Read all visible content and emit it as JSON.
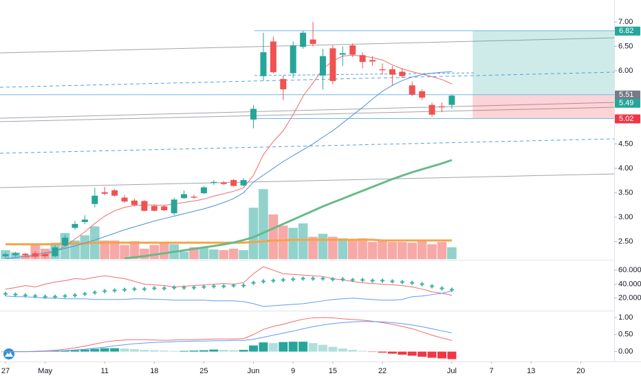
{
  "chart_data": [
    {
      "type": "candlestick",
      "x": [
        0,
        1,
        2,
        3,
        4,
        5,
        6,
        7,
        8,
        9,
        10,
        11,
        12,
        13,
        14,
        15,
        16,
        17,
        18,
        19,
        20,
        21,
        22,
        23,
        24,
        25,
        26,
        27,
        28,
        29,
        30,
        31,
        32,
        33,
        34,
        35,
        36,
        37,
        38,
        39,
        40,
        41,
        42,
        43,
        44,
        45
      ],
      "open": [
        2.2,
        2.22,
        2.25,
        2.26,
        2.24,
        2.2,
        2.42,
        2.78,
        2.9,
        3.27,
        3.51,
        3.55,
        3.4,
        3.34,
        3.33,
        3.23,
        3.22,
        3.08,
        3.39,
        3.42,
        3.49,
        3.7,
        3.71,
        3.76,
        3.65,
        5.0,
        5.89,
        6.6,
        5.83,
        5.95,
        6.49,
        6.64,
        5.9,
        6.46,
        6.33,
        6.52,
        6.32,
        6.22,
        6.03,
        6.03,
        5.98,
        5.7,
        5.58,
        5.3,
        5.27,
        5.3
      ],
      "high": [
        2.28,
        2.29,
        2.27,
        2.3,
        2.27,
        2.42,
        2.64,
        2.92,
        3.04,
        3.6,
        3.62,
        3.58,
        3.45,
        3.38,
        3.35,
        3.26,
        3.25,
        3.4,
        3.55,
        3.46,
        3.64,
        3.76,
        3.74,
        3.78,
        3.8,
        5.3,
        6.78,
        6.7,
        5.9,
        6.6,
        6.82,
        7.0,
        6.45,
        6.52,
        6.5,
        6.56,
        6.38,
        6.3,
        6.15,
        6.1,
        6.05,
        5.78,
        5.62,
        5.35,
        5.35,
        5.51
      ],
      "low": [
        2.17,
        2.19,
        2.18,
        2.15,
        2.16,
        2.18,
        2.4,
        2.74,
        2.86,
        3.2,
        3.45,
        3.42,
        3.29,
        3.22,
        3.12,
        3.12,
        3.12,
        3.04,
        3.37,
        3.38,
        3.47,
        3.66,
        3.66,
        3.62,
        3.63,
        4.82,
        5.8,
        5.95,
        5.4,
        5.85,
        6.45,
        6.5,
        5.62,
        5.72,
        6.1,
        6.28,
        6.05,
        6.1,
        5.92,
        5.7,
        5.85,
        5.48,
        5.4,
        5.05,
        5.15,
        5.22
      ],
      "close": [
        2.24,
        2.26,
        2.22,
        2.19,
        2.2,
        2.38,
        2.58,
        2.86,
        2.95,
        3.44,
        3.48,
        3.44,
        3.32,
        3.25,
        3.13,
        3.13,
        3.14,
        3.36,
        3.47,
        3.4,
        3.61,
        3.72,
        3.68,
        3.64,
        3.76,
        5.22,
        6.38,
        5.97,
        5.62,
        6.52,
        6.78,
        6.55,
        6.3,
        5.79,
        6.36,
        6.33,
        6.18,
        6.19,
        6.01,
        5.92,
        5.89,
        5.51,
        5.45,
        5.1,
        5.25,
        5.49
      ],
      "volume": [
        12,
        9,
        5,
        19,
        14,
        22,
        35,
        25,
        32,
        44,
        25,
        25,
        19,
        24,
        14,
        19,
        22,
        20,
        10,
        16,
        16,
        13,
        12,
        14,
        12,
        69,
        94,
        60,
        45,
        42,
        48,
        30,
        34,
        30,
        28,
        25,
        28,
        23,
        26,
        23,
        23,
        22,
        25,
        20,
        23,
        16
      ],
      "volume_ma": {
        "color": "#f7a244",
        "width": 3,
        "values": [
          20,
          20,
          20,
          20,
          20,
          20,
          21,
          21,
          21,
          22,
          22,
          22,
          22,
          22,
          22,
          22,
          22,
          22,
          22,
          22,
          22,
          22,
          22,
          22,
          22,
          23,
          24,
          25,
          25,
          26,
          26,
          26,
          26,
          26,
          26,
          26,
          26,
          26,
          25,
          25,
          25,
          25,
          25,
          25,
          25,
          25
        ]
      },
      "up_color": "#26a69a",
      "down_color": "#ef5350",
      "volume_up_color": "rgba(38,166,154,0.5)",
      "volume_down_color": "rgba(239,83,80,0.5)",
      "series": [
        {
          "color": "#f06a6a",
          "width": 1,
          "values": [
            null,
            null,
            2.18,
            2.2,
            2.23,
            2.3,
            2.4,
            2.55,
            2.7,
            2.87,
            3.02,
            3.13,
            3.2,
            3.24,
            3.25,
            3.25,
            3.24,
            3.27,
            3.3,
            3.33,
            3.37,
            3.43,
            3.48,
            3.53,
            3.6,
            3.86,
            4.28,
            4.55,
            4.77,
            5.1,
            5.48,
            5.75,
            6.04,
            6.2,
            6.3,
            6.32,
            6.3,
            6.27,
            6.22,
            6.12,
            6.04,
            5.98,
            5.93,
            5.88,
            5.82,
            5.73
          ]
        },
        {
          "color": "#4a8fdc",
          "width": 1,
          "values": [
            2.15,
            2.17,
            2.2,
            2.23,
            2.27,
            2.31,
            2.36,
            2.41,
            2.47,
            2.53,
            2.6,
            2.67,
            2.74,
            2.8,
            2.86,
            2.92,
            2.97,
            3.02,
            3.07,
            3.12,
            3.17,
            3.23,
            3.3,
            3.38,
            3.5,
            3.72,
            3.86,
            4.0,
            4.14,
            4.26,
            4.38,
            4.5,
            4.64,
            4.77,
            4.93,
            5.09,
            5.25,
            5.42,
            5.58,
            5.7,
            5.8,
            5.87,
            5.92,
            5.95,
            5.97,
            5.98
          ]
        },
        {
          "color": "#66bb8a",
          "width": 3,
          "values": [
            null,
            null,
            null,
            null,
            null,
            null,
            null,
            null,
            null,
            null,
            null,
            null,
            2.15,
            2.18,
            2.2,
            2.23,
            2.26,
            2.29,
            2.32,
            2.35,
            2.38,
            2.41,
            2.44,
            2.48,
            2.53,
            2.59,
            2.68,
            2.77,
            2.86,
            2.95,
            3.04,
            3.13,
            3.22,
            3.3,
            3.38,
            3.46,
            3.54,
            3.62,
            3.7,
            3.78,
            3.85,
            3.92,
            3.98,
            4.04,
            4.1,
            4.17
          ]
        }
      ],
      "ylim": [
        2.14,
        7.45
      ],
      "yticks": [
        {
          "value": 7,
          "label": "7.00"
        },
        {
          "value": 6.5,
          "label": "6.50"
        },
        {
          "value": 6,
          "label": "6.00"
        },
        {
          "value": 4.5,
          "label": "4.50"
        },
        {
          "value": 4,
          "label": "4.00"
        },
        {
          "value": 3.5,
          "label": "3.50"
        },
        {
          "value": 3,
          "label": "3.00"
        },
        {
          "value": 2.5,
          "label": "2.50"
        }
      ],
      "xlim": [
        -0.555,
        61.37
      ],
      "xticks": [
        {
          "value": 0,
          "label": "27"
        },
        {
          "value": 4,
          "label": "May"
        },
        {
          "value": 10,
          "label": "11"
        },
        {
          "value": 15,
          "label": "18"
        },
        {
          "value": 20,
          "label": "25"
        },
        {
          "value": 25,
          "label": "Jun"
        },
        {
          "value": 29,
          "label": "9"
        },
        {
          "value": 33,
          "label": "15"
        },
        {
          "value": 38,
          "label": "22"
        },
        {
          "value": 45,
          "label": "Jul"
        },
        {
          "value": 49,
          "label": "7"
        },
        {
          "value": 53,
          "label": "13"
        },
        {
          "value": 58,
          "label": "20"
        }
      ],
      "price_labels": [
        {
          "value": 6.82,
          "label": "6.82",
          "color": "#26a69a"
        },
        {
          "value": 5.51,
          "label": "5.51",
          "color": "#787b86"
        },
        {
          "value": 5.49,
          "label": "5.49",
          "color": "#26a69a"
        },
        {
          "value": 5.02,
          "label": "5.02",
          "color": "#f23645"
        }
      ],
      "position_colors": [
        "rgba(38,166,154,0.22)",
        "rgba(242,54,69,0.22)"
      ]
    },
    {
      "type": "line",
      "series": [
        {
          "color": "#f06a6a",
          "style": "line",
          "values": [
            33,
            35,
            38,
            36,
            40,
            43,
            45,
            48,
            47,
            50,
            52,
            50,
            48,
            44,
            40,
            39,
            38,
            36,
            37,
            38,
            39,
            40,
            41,
            40,
            42,
            55,
            65,
            60,
            55,
            54,
            53,
            52,
            51,
            48,
            46,
            44,
            42,
            41,
            40,
            39,
            38,
            36,
            33,
            29,
            27,
            24
          ]
        },
        {
          "color": "#5b9cf6",
          "style": "line",
          "values": [
            23,
            22,
            22,
            21,
            20,
            20,
            19,
            19,
            19,
            18,
            18,
            18,
            18,
            19,
            19,
            18,
            18,
            17,
            17,
            17,
            17,
            16,
            16,
            16,
            15,
            12,
            8,
            9,
            10,
            11,
            12,
            14,
            16,
            18,
            19,
            20,
            19,
            18,
            17,
            17,
            18,
            22,
            23,
            25,
            27,
            30
          ]
        },
        {
          "color": "#3bb3a8",
          "style": "cross",
          "values": [
            26,
            25,
            24,
            23,
            22,
            22,
            23,
            24,
            26,
            28,
            30,
            31,
            32,
            33,
            33,
            34,
            34,
            35,
            35,
            35,
            36,
            37,
            37,
            38,
            38,
            42,
            44,
            45,
            46,
            47,
            48,
            48,
            48,
            47,
            47,
            46,
            46,
            45,
            45,
            44,
            43,
            42,
            40,
            37,
            34,
            32
          ]
        }
      ],
      "ylim": [
        3,
        73
      ],
      "yticks": [
        {
          "value": 60,
          "label": "60.0000"
        },
        {
          "value": 40,
          "label": "40.0000"
        },
        {
          "value": 20,
          "label": "20.0000"
        }
      ]
    },
    {
      "type": "macd",
      "histogram": [
        0,
        0,
        0,
        0.005,
        0.01,
        0.02,
        0.03,
        0.04,
        0.06,
        0.08,
        0.1,
        0.1,
        0.09,
        0.07,
        0.05,
        0.04,
        0.03,
        0.02,
        0.02,
        0.03,
        0.04,
        0.06,
        0.05,
        0.04,
        0.05,
        0.18,
        0.27,
        0.25,
        0.28,
        0.29,
        0.29,
        0.25,
        0.2,
        0.14,
        0.09,
        0.05,
        0.02,
        -0.01,
        -0.03,
        -0.06,
        -0.09,
        -0.12,
        -0.15,
        -0.18,
        -0.2,
        -0.22
      ],
      "histogram_colors": [
        "#26a69a",
        "#b2dfdb",
        "#f23645",
        "#ffcdd2"
      ],
      "series": [
        {
          "color": "#f06a6a",
          "values": [
            0,
            0,
            0,
            0.01,
            0.02,
            0.04,
            0.07,
            0.11,
            0.16,
            0.22,
            0.28,
            0.32,
            0.34,
            0.35,
            0.35,
            0.34,
            0.33,
            0.34,
            0.35,
            0.35,
            0.36,
            0.37,
            0.37,
            0.37,
            0.38,
            0.5,
            0.65,
            0.74,
            0.8,
            0.88,
            0.95,
            0.99,
            1,
            0.99,
            0.96,
            0.94,
            0.92,
            0.89,
            0.85,
            0.8,
            0.74,
            0.67,
            0.58,
            0.48,
            0.4,
            0.33
          ]
        },
        {
          "color": "#5b9cf6",
          "values": [
            0,
            0,
            0,
            0,
            0.01,
            0.02,
            0.03,
            0.05,
            0.07,
            0.1,
            0.13,
            0.17,
            0.2,
            0.23,
            0.25,
            0.27,
            0.28,
            0.29,
            0.3,
            0.31,
            0.31,
            0.32,
            0.32,
            0.33,
            0.33,
            0.36,
            0.42,
            0.48,
            0.54,
            0.6,
            0.67,
            0.73,
            0.78,
            0.82,
            0.85,
            0.87,
            0.88,
            0.88,
            0.87,
            0.85,
            0.82,
            0.78,
            0.73,
            0.67,
            0.61,
            0.55
          ]
        }
      ],
      "ylim": [
        -0.27,
        1.16
      ],
      "yticks": [
        {
          "value": 1,
          "label": "1.00"
        },
        {
          "value": 0.5,
          "label": "0.50"
        },
        {
          "value": 0,
          "label": "0.00"
        }
      ]
    }
  ]
}
